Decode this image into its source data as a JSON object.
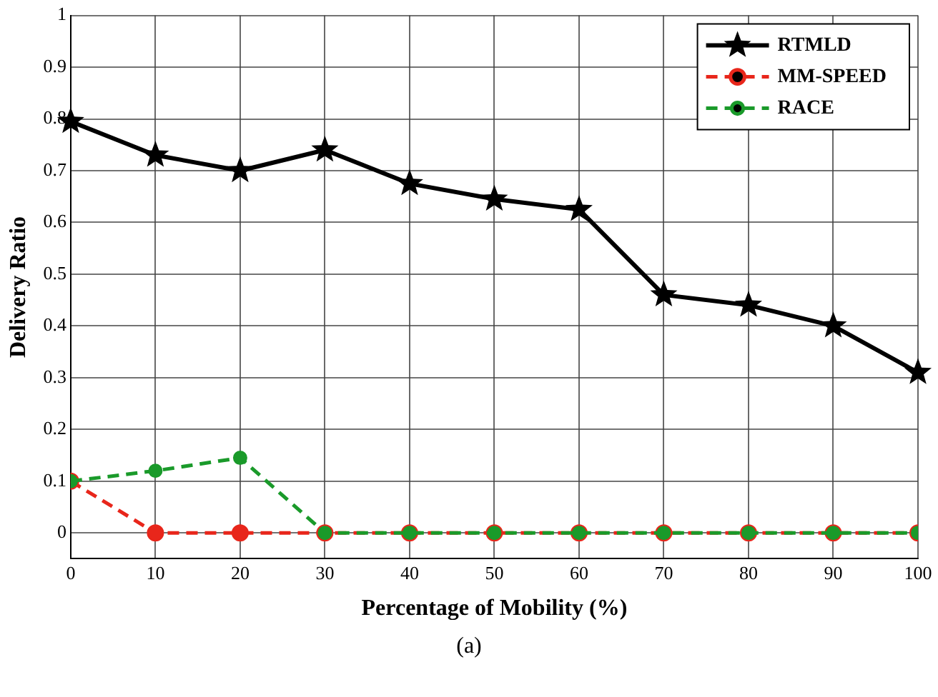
{
  "chart_data": {
    "type": "line",
    "xlabel": "Percentage of Mobility (%)",
    "ylabel": "Delivery Ratio",
    "x": [
      0,
      10,
      20,
      30,
      40,
      50,
      60,
      70,
      80,
      90,
      100
    ],
    "series": [
      {
        "name": "RTMLD",
        "color": "#000000",
        "marker": "star",
        "line_style": "solid",
        "values": [
          0.795,
          0.73,
          0.7,
          0.74,
          0.675,
          0.645,
          0.625,
          0.46,
          0.44,
          0.4,
          0.31
        ]
      },
      {
        "name": "MM-SPEED",
        "color": "#e8261b",
        "marker": "circle",
        "line_style": "dashed",
        "values": [
          0.1,
          0,
          0,
          0,
          0,
          0,
          0,
          0,
          0,
          0,
          0
        ]
      },
      {
        "name": "RACE",
        "color": "#1a9a2a",
        "marker": "circle",
        "line_style": "dashed",
        "values": [
          0.1,
          0.12,
          0.145,
          0,
          0,
          0,
          0,
          0,
          0,
          0,
          0
        ]
      }
    ],
    "xlim": [
      0,
      100
    ],
    "xticks": [
      0,
      10,
      20,
      30,
      40,
      50,
      60,
      70,
      80,
      90,
      100
    ],
    "ylim": [
      -0.05,
      1
    ],
    "yticks": [
      0,
      0.1,
      0.2,
      0.3,
      0.4,
      0.5,
      0.6,
      0.7,
      0.8,
      0.9,
      1
    ],
    "grid": true,
    "legend": "top right",
    "annotations": [
      "(a)"
    ]
  }
}
